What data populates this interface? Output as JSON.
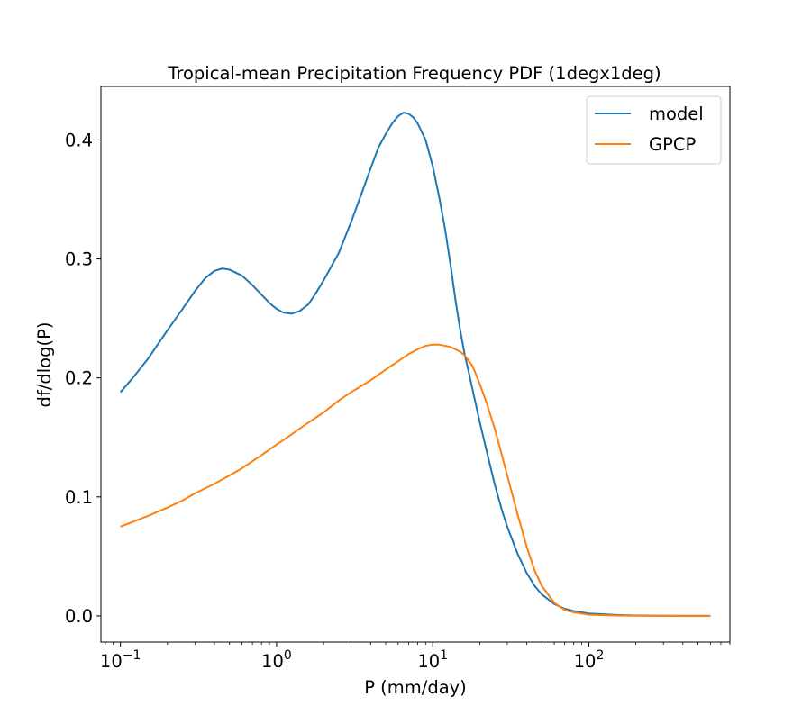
{
  "chart_data": {
    "type": "line",
    "title": "Tropical-mean Precipitation Frequency PDF (1degx1deg)",
    "xlabel": "P (mm/day)",
    "ylabel": "df/dlog(P)",
    "xscale": "log",
    "xlim": [
      0.075,
      800
    ],
    "ylim": [
      -0.022,
      0.445
    ],
    "grid": false,
    "legend_position": "top-right",
    "x_ticks": [
      {
        "value": 0.1,
        "base": "10",
        "exp": "−1"
      },
      {
        "value": 1,
        "base": "10",
        "exp": "0"
      },
      {
        "value": 10,
        "base": "10",
        "exp": "1"
      },
      {
        "value": 100,
        "base": "10",
        "exp": "2"
      }
    ],
    "y_ticks": [
      {
        "value": 0.0,
        "label": "0.0"
      },
      {
        "value": 0.1,
        "label": "0.1"
      },
      {
        "value": 0.2,
        "label": "0.2"
      },
      {
        "value": 0.3,
        "label": "0.3"
      },
      {
        "value": 0.4,
        "label": "0.4"
      }
    ],
    "series": [
      {
        "name": "model",
        "color": "#1f77b4",
        "points": [
          [
            0.1,
            0.188
          ],
          [
            0.12,
            0.2
          ],
          [
            0.15,
            0.216
          ],
          [
            0.2,
            0.24
          ],
          [
            0.25,
            0.258
          ],
          [
            0.3,
            0.273
          ],
          [
            0.35,
            0.284
          ],
          [
            0.4,
            0.29
          ],
          [
            0.45,
            0.292
          ],
          [
            0.5,
            0.291
          ],
          [
            0.6,
            0.286
          ],
          [
            0.7,
            0.278
          ],
          [
            0.8,
            0.27
          ],
          [
            0.9,
            0.263
          ],
          [
            1.0,
            0.258
          ],
          [
            1.1,
            0.255
          ],
          [
            1.25,
            0.254
          ],
          [
            1.4,
            0.256
          ],
          [
            1.6,
            0.262
          ],
          [
            1.8,
            0.272
          ],
          [
            2.0,
            0.282
          ],
          [
            2.5,
            0.305
          ],
          [
            3.0,
            0.331
          ],
          [
            3.5,
            0.355
          ],
          [
            4.0,
            0.376
          ],
          [
            4.5,
            0.394
          ],
          [
            5.0,
            0.405
          ],
          [
            5.5,
            0.414
          ],
          [
            6.0,
            0.42
          ],
          [
            6.5,
            0.423
          ],
          [
            7.0,
            0.422
          ],
          [
            7.5,
            0.419
          ],
          [
            8.0,
            0.414
          ],
          [
            9.0,
            0.4
          ],
          [
            10.0,
            0.378
          ],
          [
            11.0,
            0.352
          ],
          [
            12.0,
            0.325
          ],
          [
            13.0,
            0.295
          ],
          [
            14.0,
            0.265
          ],
          [
            15.0,
            0.24
          ],
          [
            16.0,
            0.22
          ],
          [
            17.0,
            0.205
          ],
          [
            18.0,
            0.19
          ],
          [
            20.0,
            0.163
          ],
          [
            22.0,
            0.14
          ],
          [
            25.0,
            0.11
          ],
          [
            28.0,
            0.087
          ],
          [
            30.0,
            0.075
          ],
          [
            35.0,
            0.052
          ],
          [
            40.0,
            0.036
          ],
          [
            45.0,
            0.025
          ],
          [
            50.0,
            0.018
          ],
          [
            60.0,
            0.01
          ],
          [
            70.0,
            0.006
          ],
          [
            80.0,
            0.004
          ],
          [
            100.0,
            0.002
          ],
          [
            150.0,
            0.0008
          ],
          [
            200.0,
            0.0003
          ],
          [
            300.0,
            0.0001
          ],
          [
            600.0,
            0.0
          ]
        ]
      },
      {
        "name": "GPCP",
        "color": "#ff7f0e",
        "points": [
          [
            0.1,
            0.075
          ],
          [
            0.12,
            0.079
          ],
          [
            0.15,
            0.084
          ],
          [
            0.2,
            0.091
          ],
          [
            0.25,
            0.097
          ],
          [
            0.3,
            0.103
          ],
          [
            0.4,
            0.111
          ],
          [
            0.5,
            0.118
          ],
          [
            0.6,
            0.124
          ],
          [
            0.7,
            0.13
          ],
          [
            0.8,
            0.135
          ],
          [
            1.0,
            0.144
          ],
          [
            1.2,
            0.151
          ],
          [
            1.5,
            0.16
          ],
          [
            2.0,
            0.171
          ],
          [
            2.5,
            0.181
          ],
          [
            3.0,
            0.188
          ],
          [
            4.0,
            0.198
          ],
          [
            5.0,
            0.207
          ],
          [
            6.0,
            0.214
          ],
          [
            7.0,
            0.22
          ],
          [
            8.0,
            0.224
          ],
          [
            9.0,
            0.227
          ],
          [
            10.0,
            0.228
          ],
          [
            11.0,
            0.228
          ],
          [
            12.0,
            0.227
          ],
          [
            13.0,
            0.226
          ],
          [
            14.0,
            0.224
          ],
          [
            15.0,
            0.222
          ],
          [
            16.0,
            0.219
          ],
          [
            18.0,
            0.21
          ],
          [
            20.0,
            0.195
          ],
          [
            22.0,
            0.18
          ],
          [
            25.0,
            0.157
          ],
          [
            28.0,
            0.133
          ],
          [
            30.0,
            0.118
          ],
          [
            35.0,
            0.085
          ],
          [
            40.0,
            0.058
          ],
          [
            45.0,
            0.038
          ],
          [
            50.0,
            0.025
          ],
          [
            60.0,
            0.011
          ],
          [
            70.0,
            0.005
          ],
          [
            80.0,
            0.003
          ],
          [
            100.0,
            0.001
          ],
          [
            150.0,
            0.0003
          ],
          [
            200.0,
            0.0001
          ],
          [
            300.0,
            0.0
          ],
          [
            600.0,
            0.0
          ]
        ]
      }
    ]
  }
}
